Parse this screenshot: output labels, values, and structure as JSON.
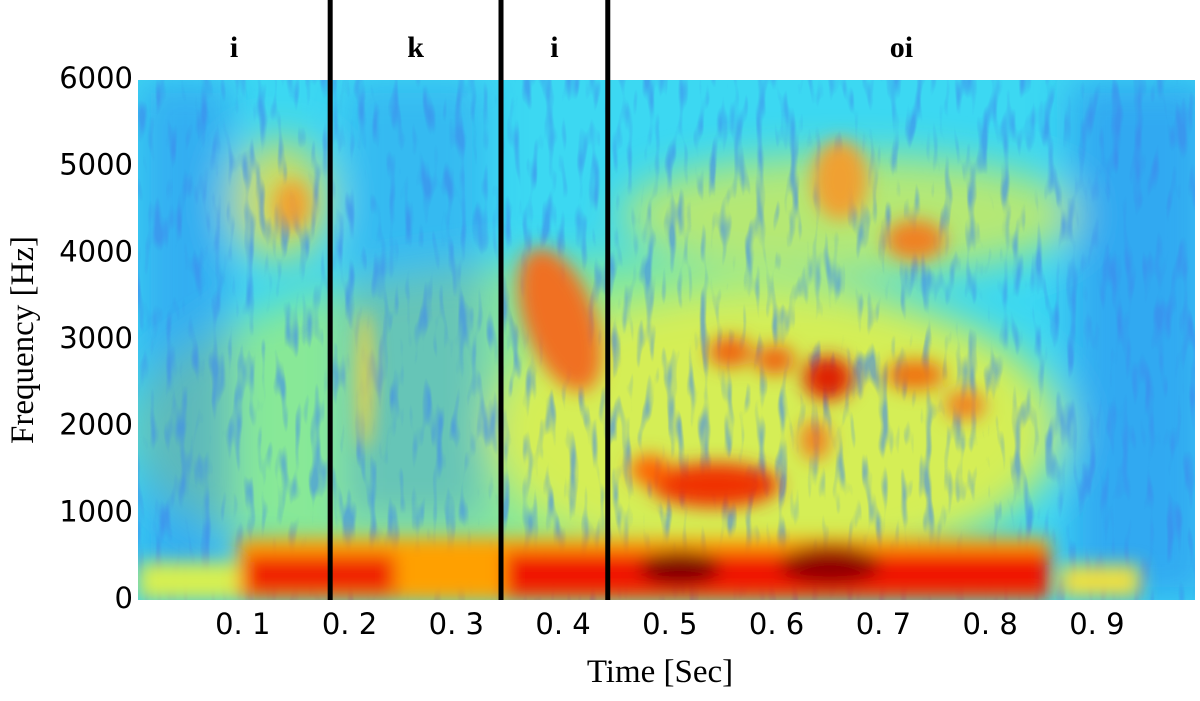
{
  "chart_data": {
    "type": "spectrogram",
    "xlabel": "Time [Sec]",
    "ylabel": "Frequency [Hz]",
    "xlim": [
      0,
      0.99
    ],
    "ylim": [
      0,
      6000
    ],
    "xticks": [
      {
        "value": 0.1,
        "label": "0. 1"
      },
      {
        "value": 0.2,
        "label": "0. 2"
      },
      {
        "value": 0.3,
        "label": "0. 3"
      },
      {
        "value": 0.4,
        "label": "0. 4"
      },
      {
        "value": 0.5,
        "label": "0. 5"
      },
      {
        "value": 0.6,
        "label": "0. 6"
      },
      {
        "value": 0.7,
        "label": "0. 7"
      },
      {
        "value": 0.8,
        "label": "0. 8"
      },
      {
        "value": 0.9,
        "label": "0. 9"
      }
    ],
    "yticks": [
      0,
      1000,
      2000,
      3000,
      4000,
      5000,
      6000
    ],
    "segments": [
      "i",
      "k",
      "i",
      "oi"
    ],
    "boundaries": [
      0.18,
      0.34,
      0.44
    ]
  }
}
